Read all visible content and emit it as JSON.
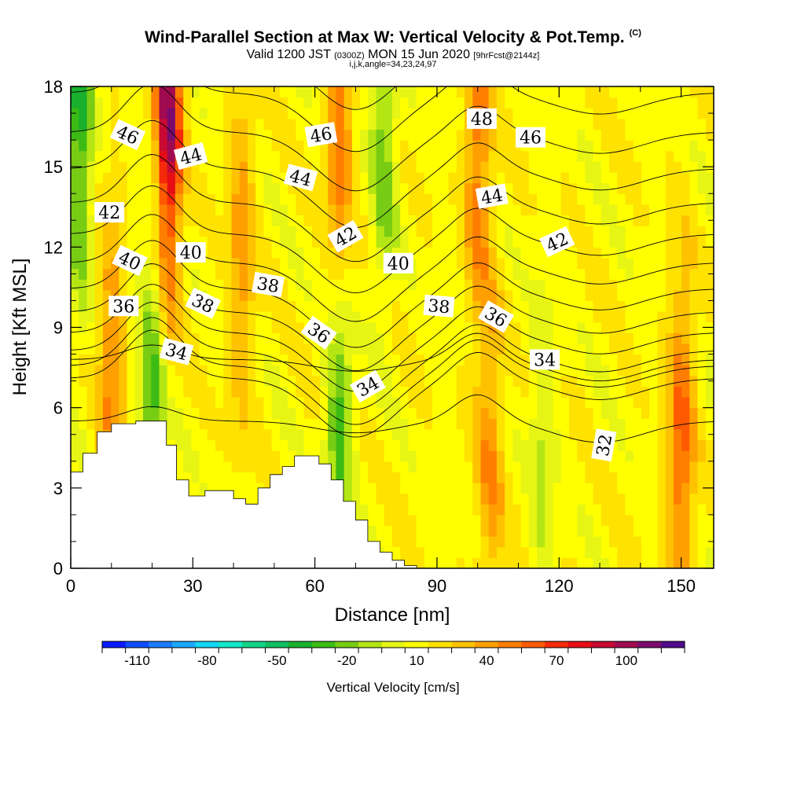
{
  "title": "Wind-Parallel Section at Max W: Vertical Velocity & Pot.Temp.",
  "title_tag": "(C)",
  "subtitle_pre": "Valid 1200 JST",
  "subtitle_z": "(0300Z)",
  "subtitle_post": "MON 15 Jun 2020",
  "subtitle_fcst": "[9hrFcst@2144z]",
  "subtitle2": "i,j,k,angle=34,23,24,97",
  "colorbar_label": "Vertical Velocity [cm/s]",
  "colorbar_ticks": [
    "-110",
    "-80",
    "-50",
    "-20",
    "10",
    "40",
    "70",
    "100"
  ],
  "colors": {
    "levels": [
      "#0a1aff",
      "#0f4cff",
      "#1a7bff",
      "#1aa8ff",
      "#13d6f5",
      "#13e8c8",
      "#14d48a",
      "#10c060",
      "#18b02c",
      "#3cbb14",
      "#78cc14",
      "#b4e614",
      "#e6f514",
      "#ffff00",
      "#ffe200",
      "#ffc200",
      "#ffa000",
      "#ff7e00",
      "#ff5a00",
      "#f52a0a",
      "#e60d14",
      "#c80a32",
      "#a00a50",
      "#7a0a6e",
      "#500a8a"
    ],
    "terrain": "#ffffff",
    "contour": "#000000"
  },
  "chart_data": {
    "type": "heatmap",
    "xlabel": "Distance [nm]",
    "ylabel": "Height [Kft MSL]",
    "xlim": [
      0,
      158
    ],
    "ylim": [
      0,
      18
    ],
    "xticks": [
      "0",
      "30",
      "60",
      "90",
      "120",
      "150"
    ],
    "yticks": [
      "0",
      "3",
      "6",
      "9",
      "12",
      "15",
      "18"
    ],
    "field": "Vertical Velocity",
    "units": "cm/s",
    "colorbar_range": [
      -125,
      125
    ],
    "updrafts": [
      {
        "x": 24,
        "y": 17,
        "w": 90
      },
      {
        "x": 66,
        "y": 15,
        "w": 45
      },
      {
        "x": 100,
        "y": 16,
        "w": 40
      },
      {
        "x": 150,
        "y": 4.5,
        "w": 45
      },
      {
        "x": 103,
        "y": 4,
        "w": 30
      },
      {
        "x": 10,
        "y": 7,
        "w": 35
      },
      {
        "x": 42,
        "y": 12,
        "w": 30
      }
    ],
    "downdrafts": [
      {
        "x": 66,
        "y": 6,
        "w": -45
      },
      {
        "x": 2,
        "y": 17,
        "w": -50
      },
      {
        "x": 20,
        "y": 6,
        "w": -40
      },
      {
        "x": 116,
        "y": 4,
        "w": -20
      },
      {
        "x": 77,
        "y": 17,
        "w": -35
      }
    ],
    "terrain": [
      {
        "x": 0,
        "h": 3.6
      },
      {
        "x": 3,
        "h": 4.3
      },
      {
        "x": 6.5,
        "h": 5.1
      },
      {
        "x": 10,
        "h": 5.4
      },
      {
        "x": 16,
        "h": 5.5
      },
      {
        "x": 21,
        "h": 5.5
      },
      {
        "x": 23.5,
        "h": 4.6
      },
      {
        "x": 26,
        "h": 3.3
      },
      {
        "x": 29,
        "h": 2.7
      },
      {
        "x": 33,
        "h": 2.9
      },
      {
        "x": 37,
        "h": 2.9
      },
      {
        "x": 40,
        "h": 2.6
      },
      {
        "x": 43,
        "h": 2.4
      },
      {
        "x": 46,
        "h": 3.0
      },
      {
        "x": 49,
        "h": 3.5
      },
      {
        "x": 52,
        "h": 3.8
      },
      {
        "x": 55,
        "h": 4.2
      },
      {
        "x": 58,
        "h": 4.2
      },
      {
        "x": 61,
        "h": 3.9
      },
      {
        "x": 64,
        "h": 3.3
      },
      {
        "x": 67,
        "h": 2.5
      },
      {
        "x": 70,
        "h": 1.8
      },
      {
        "x": 73,
        "h": 1.0
      },
      {
        "x": 76,
        "h": 0.6
      },
      {
        "x": 79,
        "h": 0.3
      },
      {
        "x": 82,
        "h": 0.1
      },
      {
        "x": 85,
        "h": 0.0
      }
    ],
    "theta_levels": [
      32,
      33,
      34,
      35,
      36,
      37,
      38,
      39,
      40,
      41,
      42,
      43,
      44,
      45,
      46,
      47,
      48
    ],
    "contour_labels": [
      {
        "text": "46",
        "x": 14,
        "y": 16.2,
        "angle": 25
      },
      {
        "text": "44",
        "x": 29.5,
        "y": 15.4,
        "angle": -15
      },
      {
        "text": "42",
        "x": 9.5,
        "y": 13.3,
        "angle": 0
      },
      {
        "text": "40",
        "x": 14.5,
        "y": 11.5,
        "angle": 25
      },
      {
        "text": "40",
        "x": 29.5,
        "y": 11.8,
        "angle": 0
      },
      {
        "text": "36",
        "x": 13,
        "y": 9.8,
        "angle": 0
      },
      {
        "text": "38",
        "x": 32.5,
        "y": 9.9,
        "angle": 25
      },
      {
        "text": "34",
        "x": 26,
        "y": 8.1,
        "angle": 15
      },
      {
        "text": "46",
        "x": 61.5,
        "y": 16.2,
        "angle": -10
      },
      {
        "text": "44",
        "x": 56.5,
        "y": 14.6,
        "angle": 15
      },
      {
        "text": "38",
        "x": 48.5,
        "y": 10.6,
        "angle": 10
      },
      {
        "text": "36",
        "x": 61,
        "y": 8.8,
        "angle": 35
      },
      {
        "text": "34",
        "x": 73,
        "y": 6.8,
        "angle": -30
      },
      {
        "text": "42",
        "x": 67.5,
        "y": 12.4,
        "angle": -30
      },
      {
        "text": "40",
        "x": 80.5,
        "y": 11.4,
        "angle": 0
      },
      {
        "text": "38",
        "x": 90.5,
        "y": 9.8,
        "angle": 5
      },
      {
        "text": "48",
        "x": 101,
        "y": 16.8,
        "angle": 0
      },
      {
        "text": "46",
        "x": 113,
        "y": 16.1,
        "angle": 0
      },
      {
        "text": "44",
        "x": 103.5,
        "y": 13.9,
        "angle": -10
      },
      {
        "text": "42",
        "x": 119.5,
        "y": 12.2,
        "angle": -25
      },
      {
        "text": "36",
        "x": 104.5,
        "y": 9.4,
        "angle": 30
      },
      {
        "text": "34",
        "x": 116.5,
        "y": 7.8,
        "angle": 0
      },
      {
        "text": "32",
        "x": 131,
        "y": 4.6,
        "angle": -80
      }
    ]
  }
}
